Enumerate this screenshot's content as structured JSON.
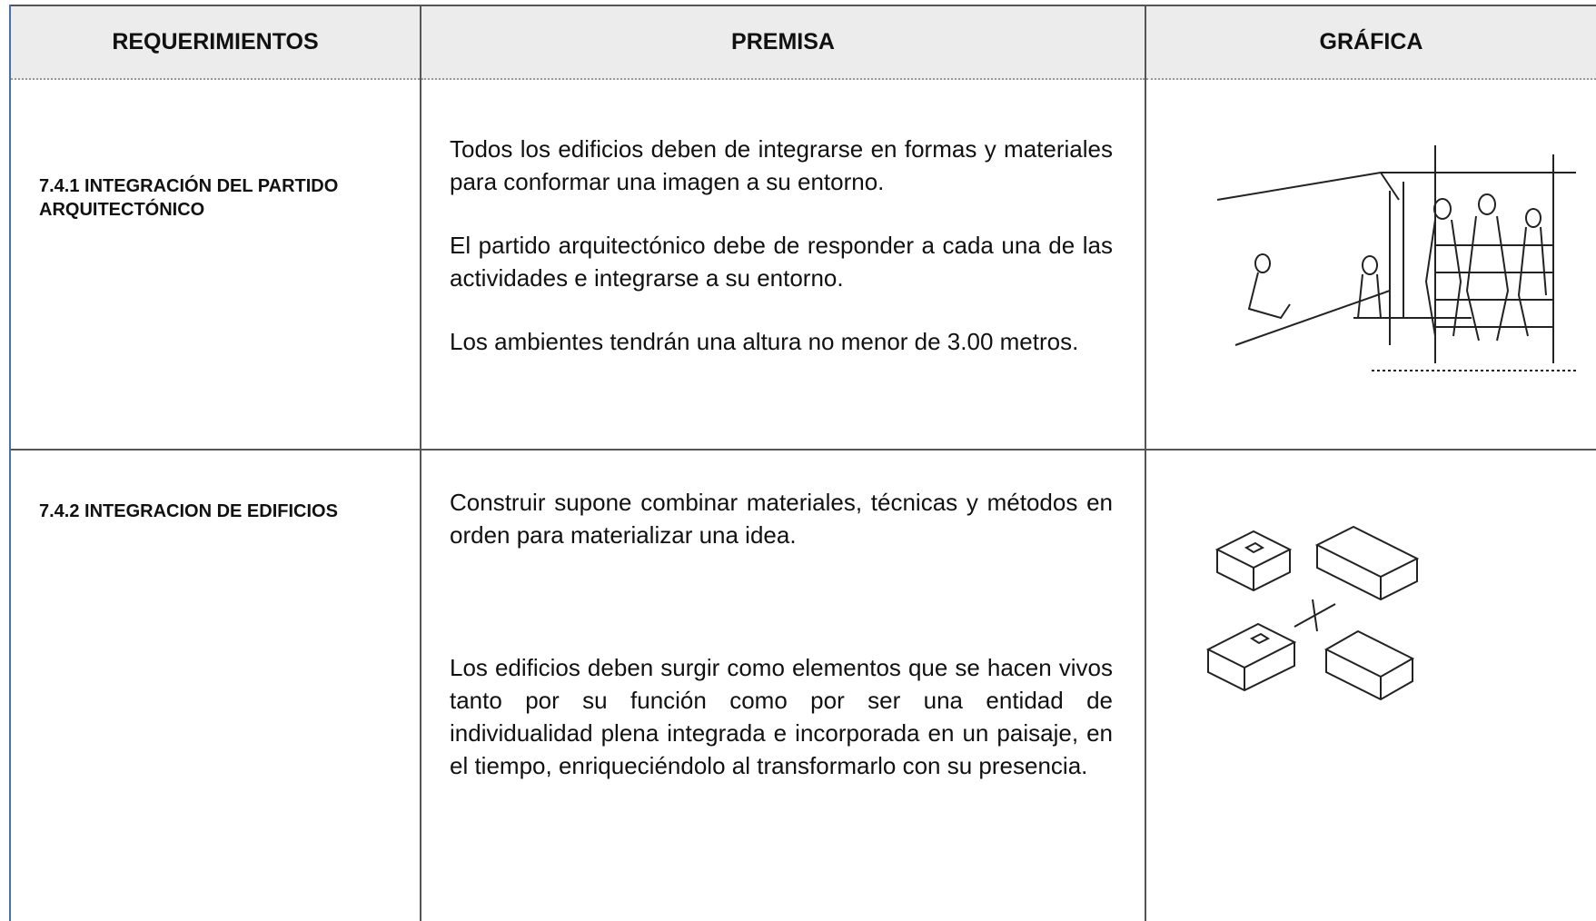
{
  "table": {
    "headers": [
      "REQUERIMIENTOS",
      "PREMISA",
      "GRÁFICA"
    ],
    "rows": [
      {
        "requirement": "7.4.1 INTEGRACIÓN DEL PARTIDO ARQUITECTÓNICO",
        "premises": [
          "Todos los edificios deben de integrarse en formas y materiales para conformar una imagen a su entorno.",
          "El partido arquitectónico debe de responder a cada una de las actividades e integrarse a su entorno.",
          "Los ambientes tendrán una altura no menor de 3.00 metros."
        ]
      },
      {
        "requirement": "7.4.2 INTEGRACION DE EDIFICIOS",
        "premises": [
          "Construir supone combinar materiales, técnicas y métodos en orden para materializar una idea.",
          "Los edificios deben surgir como elementos que se hacen vivos tanto por su función como por ser una entidad de individualidad plena integrada e incorporada en un paisaje, en el tiempo, enriqueciéndolo al transformarlo con su presencia."
        ]
      }
    ]
  }
}
